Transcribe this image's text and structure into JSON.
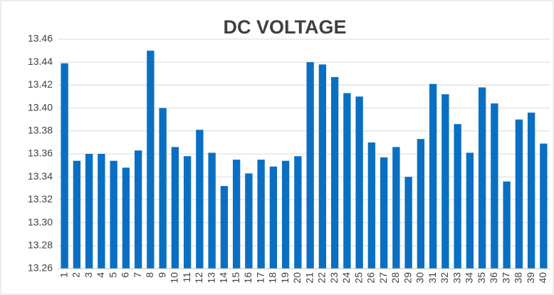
{
  "chart_data": {
    "type": "bar",
    "title": "DC VOLTAGE",
    "categories": [
      "1",
      "2",
      "3",
      "4",
      "5",
      "6",
      "7",
      "8",
      "9",
      "10",
      "11",
      "12",
      "13",
      "14",
      "15",
      "16",
      "17",
      "18",
      "19",
      "20",
      "21",
      "22",
      "23",
      "24",
      "25",
      "26",
      "27",
      "28",
      "29",
      "30",
      "31",
      "32",
      "33",
      "34",
      "35",
      "36",
      "37",
      "38",
      "39",
      "40"
    ],
    "values": [
      13.439,
      13.354,
      13.36,
      13.36,
      13.354,
      13.348,
      13.363,
      13.45,
      13.4,
      13.366,
      13.358,
      13.381,
      13.361,
      13.332,
      13.355,
      13.343,
      13.355,
      13.349,
      13.354,
      13.358,
      13.44,
      13.438,
      13.427,
      13.413,
      13.41,
      13.37,
      13.357,
      13.366,
      13.34,
      13.373,
      13.421,
      13.412,
      13.386,
      13.361,
      13.418,
      13.404,
      13.336,
      13.39,
      13.396,
      13.369
    ],
    "color": "#0a6fc2",
    "ylim": [
      13.26,
      13.46
    ],
    "yticks": [
      13.26,
      13.28,
      {
        "value": 13.3,
        "label": "13.30"
      },
      13.32,
      13.34,
      13.36,
      13.38,
      {
        "value": 13.4,
        "label": "13.40"
      },
      13.42,
      13.44,
      13.46
    ],
    "grid": true
  }
}
